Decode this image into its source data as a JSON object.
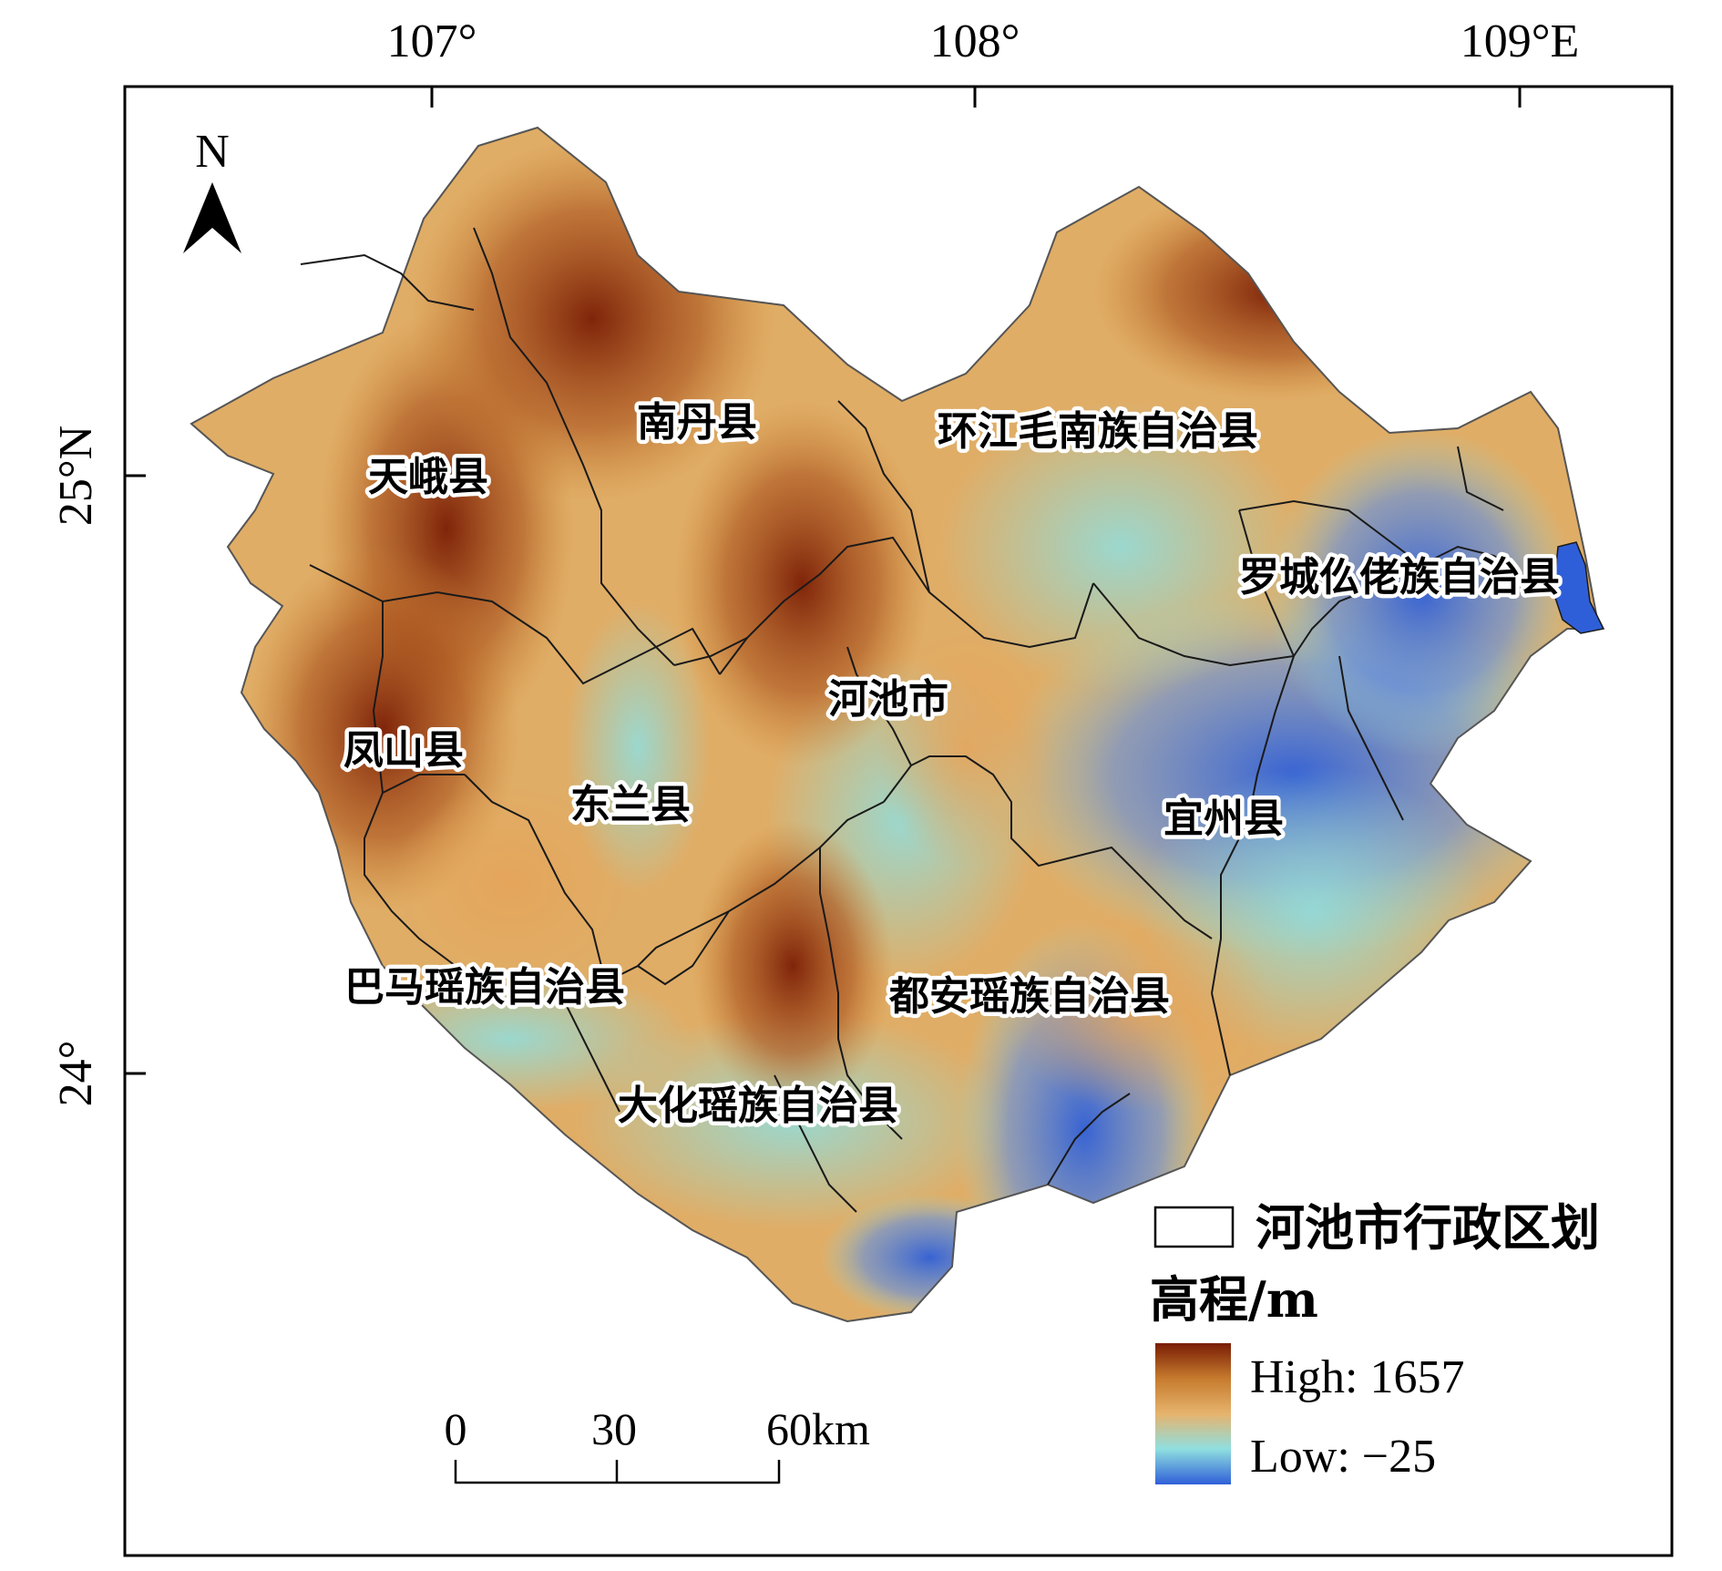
{
  "map": {
    "top_ticks": [
      "107°",
      "108°",
      "109°E"
    ],
    "left_ticks": [
      "25°N",
      "24°"
    ],
    "north_label": "N",
    "counties": [
      {
        "name": "天峨县"
      },
      {
        "name": "南丹县"
      },
      {
        "name": "环江毛南族自治县"
      },
      {
        "name": "罗城仫佬族自治县"
      },
      {
        "name": "河池市"
      },
      {
        "name": "凤山县"
      },
      {
        "name": "东兰县"
      },
      {
        "name": "宜州县"
      },
      {
        "name": "巴马瑶族自治县"
      },
      {
        "name": "都安瑶族自治县"
      },
      {
        "name": "大化瑶族自治县"
      }
    ],
    "scale_bar": {
      "labels": [
        "0",
        "30",
        "60km"
      ]
    },
    "legend": {
      "boundary_label": "河池市行政区划",
      "elevation_title": "高程/m",
      "high_label": "High: 1657",
      "low_label": "Low: −25"
    },
    "colors": {
      "high": "#7a1d05",
      "mid_high": "#c67b2e",
      "mid": "#e6b36d",
      "mid_low": "#8fdfe0",
      "low": "#2f5fd8",
      "boundary": "#1a1a1a"
    }
  }
}
